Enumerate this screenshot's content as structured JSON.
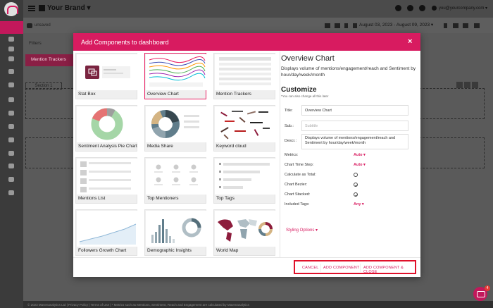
{
  "topbar": {
    "brand": "Your Brand",
    "brand_caret": "▾",
    "email": "you@yourcompany.com ▾"
  },
  "subbar": {
    "status": "unsaved",
    "date_range": "August 03, 2023 - August 09, 2023 ▾"
  },
  "page": {
    "filters": "Filters",
    "tab": "Mention Trackers",
    "section": "Section 1"
  },
  "footer": "© 2023 Mavenanalytics Ltd | Privacy Policy | Terms of Use | * Metrics such as Mentions, Sentiment, Reach and Engagement are calculated by Mavenanalytics",
  "chat_badge": "4",
  "modal": {
    "title": "Add Components to dashboard",
    "close": "×",
    "cards": [
      {
        "label": "Stat Box"
      },
      {
        "label": "Overview Chart"
      },
      {
        "label": "Mention Trackers"
      },
      {
        "label": "Sentiment Analysis Pie Chart"
      },
      {
        "label": "Media Share"
      },
      {
        "label": "Keyword cloud"
      },
      {
        "label": "Mentions List"
      },
      {
        "label": "Top Mentioners"
      },
      {
        "label": "Top Tags"
      },
      {
        "label": "Followers Growth Chart"
      },
      {
        "label": "Demographic Insights"
      },
      {
        "label": "World Map"
      }
    ],
    "detail": {
      "title": "Overview Chart",
      "description": "Displays volume of mentions/engagement/reach and Sentiment by hour/day/week/month",
      "customize": "Customize",
      "customize_note": "*You can also change all this later",
      "title_label": "Title:",
      "title_value": "Overview Chart",
      "sub_label": "Sub.:",
      "sub_placeholder": "Subtitle",
      "descr_label": "Descr.:",
      "descr_value": "Displays volume of mentions/engagement/reach and Sentiment by hour/day/week/month",
      "options": [
        {
          "label": "Metrics:",
          "value": "Auto ▾"
        },
        {
          "label": "Chart Time Step:",
          "value": "Auto ▾"
        },
        {
          "label": "Calculate as Total:",
          "value": ""
        },
        {
          "label": "Chart Bezier:",
          "value": ""
        },
        {
          "label": "Chart Stacked:",
          "value": ""
        },
        {
          "label": "Included Tags:",
          "value": "Any ▾"
        }
      ],
      "styling": "Styling Options ▾"
    },
    "buttons": {
      "cancel": "CANCEL",
      "add": "ADD COMPONENT",
      "add_close": "ADD COMPONENT & CLOSE"
    }
  },
  "colors": {
    "accent": "#d81b60",
    "highlight": "#e0102a"
  }
}
